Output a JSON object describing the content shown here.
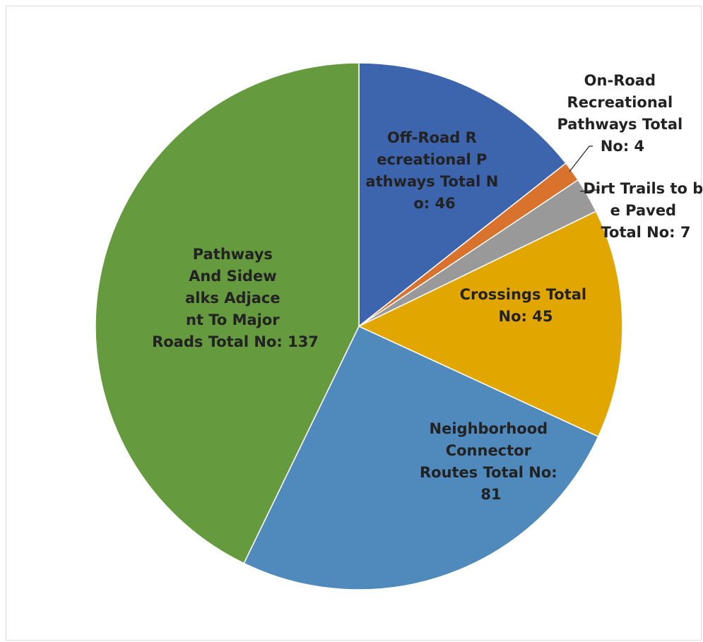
{
  "chart_data": {
    "type": "pie",
    "slices": [
      {
        "label": "Off-Road Recreational Pathways Total No: 46",
        "category": "Off-Road Recreational Pathways",
        "value": 46,
        "color": "#3D65AD"
      },
      {
        "label": "On-Road Recreational Pathways Total No: 4",
        "category": "On-Road Recreational Pathways",
        "value": 4,
        "color": "#D9722C"
      },
      {
        "label": "Dirt Trails to be Paved Total No: 7",
        "category": "Dirt Trails to be Paved",
        "value": 7,
        "color": "#999999"
      },
      {
        "label": "Crossings Total No: 45",
        "category": "Crossings",
        "value": 45,
        "color": "#E2A600"
      },
      {
        "label": "Neighborhood Connector Routes Total No: 81",
        "category": "Neighborhood Connector Routes",
        "value": 81,
        "color": "#508ABC"
      },
      {
        "label": "Pathways And Sidewalks Adjacent To Major Roads Total No: 137",
        "category": "Pathways And Sidewalks Adjacent To Major Roads",
        "value": 137,
        "color": "#659A3F"
      }
    ],
    "start_angle": "12 o'clock",
    "direction": "clockwise",
    "legend": "none",
    "data_labels": "category and value on or beside each slice"
  }
}
